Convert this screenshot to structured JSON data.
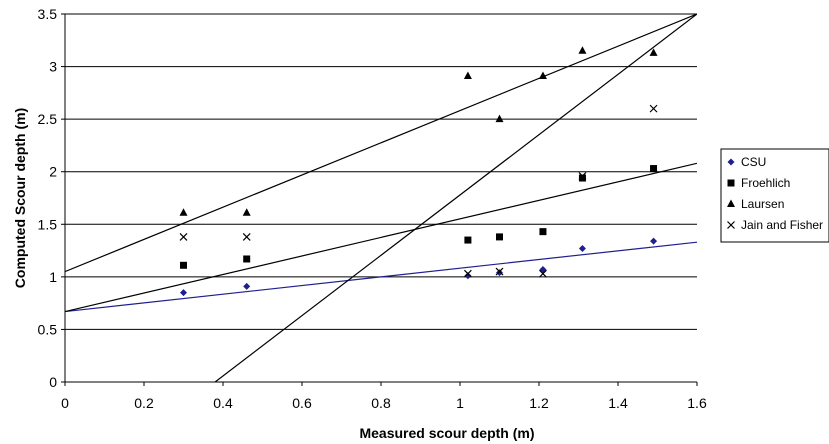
{
  "chart_data": {
    "type": "scatter",
    "title": "",
    "xlabel": "Measured scour depth (m)",
    "ylabel": "Computed Scour depth (m)",
    "xlim": [
      0,
      1.6
    ],
    "ylim": [
      0,
      3.5
    ],
    "x_ticks": [
      "0",
      "0.2",
      "0.4",
      "0.6",
      "0.8",
      "1",
      "1.2",
      "1.4",
      "1.6"
    ],
    "y_ticks": [
      "0",
      "0.5",
      "1",
      "1.5",
      "2",
      "2.5",
      "3",
      "3.5"
    ],
    "grid": "horizontal",
    "legend_position": "right",
    "series": [
      {
        "name": "CSU",
        "marker": "diamond",
        "color": "#1f1f8f",
        "points": [
          [
            0.3,
            0.85
          ],
          [
            0.46,
            0.91
          ],
          [
            1.02,
            1.01
          ],
          [
            1.1,
            1.04
          ],
          [
            1.21,
            1.07
          ],
          [
            1.31,
            1.27
          ],
          [
            1.49,
            1.34
          ]
        ]
      },
      {
        "name": "Froehlich",
        "marker": "square",
        "color": "#000000",
        "points": [
          [
            0.3,
            1.11
          ],
          [
            0.46,
            1.17
          ],
          [
            1.02,
            1.35
          ],
          [
            1.1,
            1.38
          ],
          [
            1.21,
            1.43
          ],
          [
            1.31,
            1.94
          ],
          [
            1.49,
            2.03
          ]
        ]
      },
      {
        "name": "Laursen",
        "marker": "triangle",
        "color": "#000000",
        "points": [
          [
            0.3,
            1.61
          ],
          [
            0.46,
            1.61
          ],
          [
            1.02,
            2.91
          ],
          [
            1.1,
            2.5
          ],
          [
            1.21,
            2.91
          ],
          [
            1.31,
            3.15
          ],
          [
            1.49,
            3.13
          ]
        ]
      },
      {
        "name": "Jain and Fisher",
        "marker": "x",
        "color": "#000000",
        "points": [
          [
            0.3,
            1.38
          ],
          [
            0.46,
            1.38
          ],
          [
            1.02,
            1.03
          ],
          [
            1.1,
            1.05
          ],
          [
            1.21,
            1.03
          ],
          [
            1.31,
            1.96
          ],
          [
            1.49,
            2.6
          ]
        ]
      }
    ],
    "trend_lines": [
      {
        "color": "#1f1f8f",
        "from": [
          0,
          0.67
        ],
        "to": [
          1.6,
          1.33
        ]
      },
      {
        "color": "#000000",
        "from": [
          0,
          0.67
        ],
        "to": [
          1.6,
          2.08
        ]
      },
      {
        "color": "#000000",
        "from": [
          0,
          1.05
        ],
        "to": [
          1.6,
          3.5
        ]
      },
      {
        "color": "#000000",
        "from": [
          0.38,
          0.0
        ],
        "to": [
          1.6,
          3.5
        ]
      }
    ]
  }
}
